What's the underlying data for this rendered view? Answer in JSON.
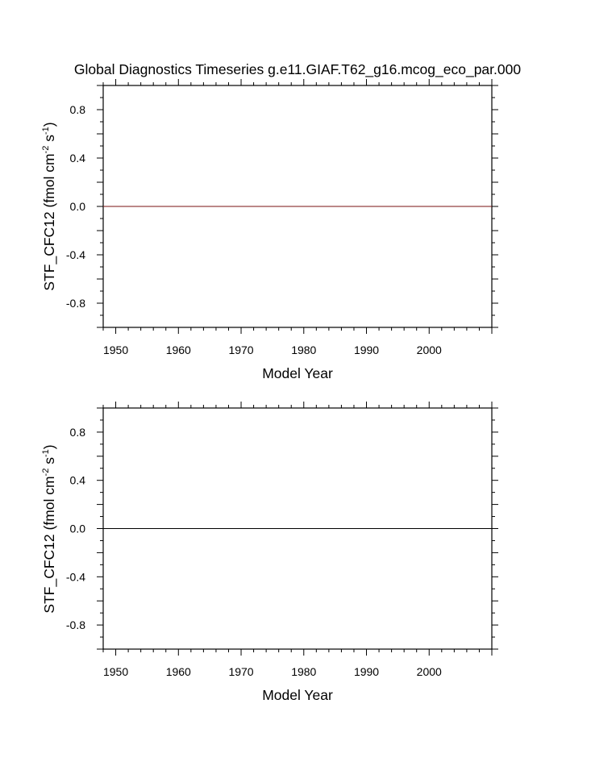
{
  "title": "Global Diagnostics Timeseries g.e11.GIAF.T62_g16.mcog_eco_par.000",
  "chart_data": [
    {
      "type": "line",
      "xlabel": "Model Year",
      "ylabel_parts": [
        "STF_CFC12 (fmol cm",
        "-2",
        " s",
        "-1",
        ")"
      ],
      "xlim": [
        1948,
        2010
      ],
      "ylim": [
        -1.0,
        1.0
      ],
      "x_ticks": [
        1950,
        1960,
        1970,
        1980,
        1990,
        2000
      ],
      "y_ticks": [
        0.8,
        0.4,
        0.0,
        -0.4,
        -0.8
      ],
      "y_tick_labels": [
        "0.8",
        "0.4",
        "0.0",
        "-0.4",
        "-0.8"
      ],
      "series": [
        {
          "x": [
            1948,
            2010
          ],
          "y": [
            0.0,
            0.0
          ],
          "color": "#7a1010"
        }
      ]
    },
    {
      "type": "line",
      "xlabel": "Model Year",
      "ylabel_parts": [
        "STF_CFC12 (fmol cm",
        "-2",
        " s",
        "-1",
        ")"
      ],
      "xlim": [
        1948,
        2010
      ],
      "ylim": [
        -1.0,
        1.0
      ],
      "x_ticks": [
        1950,
        1960,
        1970,
        1980,
        1990,
        2000
      ],
      "y_ticks": [
        0.8,
        0.4,
        0.0,
        -0.4,
        -0.8
      ],
      "y_tick_labels": [
        "0.8",
        "0.4",
        "0.0",
        "-0.4",
        "-0.8"
      ],
      "series": [
        {
          "x": [
            1948,
            2010
          ],
          "y": [
            0.0,
            0.0
          ],
          "color": "#000000"
        }
      ]
    }
  ]
}
